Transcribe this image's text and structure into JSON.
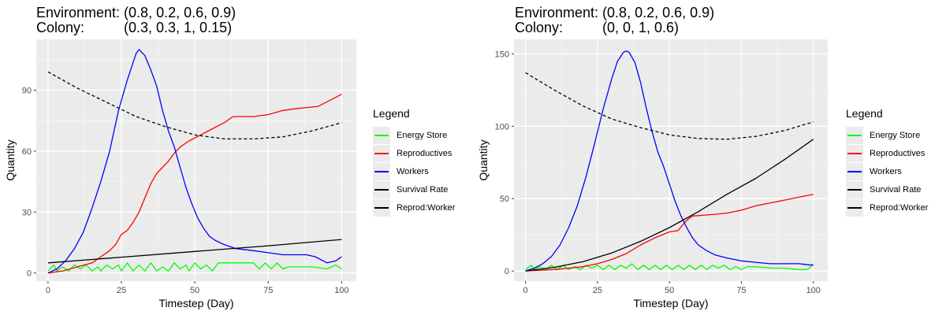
{
  "chart_data": [
    {
      "type": "line",
      "title_line1": "Environment: (0.8, 0.2, 0.6, 0.9)",
      "title_line2_label": "Colony:",
      "title_line2_value": "(0.3, 0.3, 1, 0.15)",
      "xlabel": "Timestep (Day)",
      "ylabel": "Quantity",
      "xlim": [
        -4,
        105
      ],
      "ylim": [
        -4,
        115
      ],
      "xticks": [
        0,
        25,
        50,
        75,
        100
      ],
      "yticks": [
        0,
        30,
        60,
        90
      ],
      "grid": true,
      "legend_position": "right",
      "legend_title": "Legend",
      "legend": [
        {
          "name": "Energy Store",
          "color": "#00ff00"
        },
        {
          "name": "Reproductives",
          "color": "#ff0000"
        },
        {
          "name": "Workers",
          "color": "#0000ff"
        },
        {
          "name": "Survival Rate",
          "color": "#000000"
        },
        {
          "name": "Reprod:Worker",
          "color": "#000000"
        }
      ],
      "series": [
        {
          "name": "Energy Store",
          "color": "#00ff00",
          "dashed": false,
          "points": [
            [
              0,
              1
            ],
            [
              2,
              4
            ],
            [
              3,
              1
            ],
            [
              5,
              3
            ],
            [
              7,
              1
            ],
            [
              9,
              4
            ],
            [
              11,
              2
            ],
            [
              13,
              4
            ],
            [
              15,
              1
            ],
            [
              17,
              3
            ],
            [
              18,
              1
            ],
            [
              20,
              4
            ],
            [
              22,
              2
            ],
            [
              24,
              4
            ],
            [
              25,
              1
            ],
            [
              27,
              5
            ],
            [
              29,
              1
            ],
            [
              31,
              4
            ],
            [
              33,
              1
            ],
            [
              35,
              5
            ],
            [
              37,
              1
            ],
            [
              39,
              3
            ],
            [
              41,
              1
            ],
            [
              43,
              5
            ],
            [
              45,
              2
            ],
            [
              47,
              4
            ],
            [
              48,
              1
            ],
            [
              50,
              5
            ],
            [
              52,
              2
            ],
            [
              54,
              4
            ],
            [
              56,
              1
            ],
            [
              58,
              5
            ],
            [
              60,
              5
            ],
            [
              65,
              5
            ],
            [
              70,
              5
            ],
            [
              72,
              2
            ],
            [
              74,
              5
            ],
            [
              76,
              2
            ],
            [
              78,
              5
            ],
            [
              80,
              2
            ],
            [
              82,
              3
            ],
            [
              90,
              3
            ],
            [
              95,
              2
            ],
            [
              98,
              4
            ],
            [
              100,
              2
            ]
          ]
        },
        {
          "name": "Reproductives",
          "color": "#ff0000",
          "dashed": false,
          "points": [
            [
              0,
              0
            ],
            [
              5,
              1
            ],
            [
              10,
              3
            ],
            [
              15,
              5
            ],
            [
              18,
              8
            ],
            [
              21,
              11
            ],
            [
              23,
              14
            ],
            [
              25,
              19
            ],
            [
              27,
              21
            ],
            [
              29,
              25
            ],
            [
              31,
              30
            ],
            [
              33,
              37
            ],
            [
              35,
              44
            ],
            [
              37,
              49
            ],
            [
              39,
              52
            ],
            [
              41,
              55
            ],
            [
              43,
              59
            ],
            [
              45,
              62
            ],
            [
              48,
              65
            ],
            [
              52,
              68
            ],
            [
              56,
              71
            ],
            [
              60,
              74
            ],
            [
              63,
              77
            ],
            [
              70,
              77
            ],
            [
              75,
              78
            ],
            [
              80,
              80
            ],
            [
              85,
              81
            ],
            [
              92,
              82
            ],
            [
              96,
              85
            ],
            [
              100,
              88
            ]
          ]
        },
        {
          "name": "Workers",
          "color": "#0000ff",
          "dashed": false,
          "points": [
            [
              0,
              0
            ],
            [
              3,
              2
            ],
            [
              6,
              6
            ],
            [
              9,
              12
            ],
            [
              12,
              20
            ],
            [
              15,
              32
            ],
            [
              18,
              45
            ],
            [
              21,
              60
            ],
            [
              24,
              80
            ],
            [
              27,
              95
            ],
            [
              30,
              108
            ],
            [
              31,
              110
            ],
            [
              33,
              107
            ],
            [
              35,
              100
            ],
            [
              37,
              92
            ],
            [
              39,
              80
            ],
            [
              41,
              70
            ],
            [
              43,
              62
            ],
            [
              45,
              52
            ],
            [
              47,
              42
            ],
            [
              49,
              34
            ],
            [
              51,
              27
            ],
            [
              53,
              22
            ],
            [
              55,
              18
            ],
            [
              57,
              16
            ],
            [
              60,
              14
            ],
            [
              64,
              12
            ],
            [
              70,
              11
            ],
            [
              75,
              10
            ],
            [
              80,
              9
            ],
            [
              85,
              9
            ],
            [
              88,
              9
            ],
            [
              91,
              8
            ],
            [
              95,
              5
            ],
            [
              98,
              6
            ],
            [
              100,
              8
            ]
          ]
        },
        {
          "name": "Survival Rate",
          "color": "#000000",
          "dashed": false,
          "points": [
            [
              0,
              5
            ],
            [
              25,
              7.8
            ],
            [
              50,
              10.6
            ],
            [
              75,
              13.4
            ],
            [
              100,
              16.5
            ]
          ]
        },
        {
          "name": "Reprod:Worker",
          "color": "#000000",
          "dashed": true,
          "points": [
            [
              0,
              99
            ],
            [
              10,
              91
            ],
            [
              20,
              84
            ],
            [
              30,
              77
            ],
            [
              40,
              72
            ],
            [
              50,
              68
            ],
            [
              60,
              66
            ],
            [
              70,
              66
            ],
            [
              80,
              67
            ],
            [
              90,
              70
            ],
            [
              100,
              74
            ]
          ]
        }
      ]
    },
    {
      "type": "line",
      "title_line1": "Environment: (0.8, 0.2, 0.6, 0.9)",
      "title_line2_label": "Colony:",
      "title_line2_value": "(0, 0, 1, 0.6)",
      "xlabel": "Timestep (Day)",
      "ylabel": "Quantity",
      "xlim": [
        -4,
        105
      ],
      "ylim": [
        -7,
        160
      ],
      "xticks": [
        0,
        25,
        50,
        75,
        100
      ],
      "yticks": [
        0,
        50,
        100,
        150
      ],
      "grid": true,
      "legend_position": "right",
      "legend_title": "Legend",
      "legend": [
        {
          "name": "Energy Store",
          "color": "#00ff00"
        },
        {
          "name": "Reproductives",
          "color": "#ff0000"
        },
        {
          "name": "Workers",
          "color": "#0000ff"
        },
        {
          "name": "Survival Rate",
          "color": "#000000"
        },
        {
          "name": "Reprod:Worker",
          "color": "#000000"
        }
      ],
      "series": [
        {
          "name": "Energy Store",
          "color": "#00ff00",
          "dashed": false,
          "points": [
            [
              0,
              1
            ],
            [
              2,
              4
            ],
            [
              3,
              1
            ],
            [
              5,
              3
            ],
            [
              7,
              1
            ],
            [
              9,
              4
            ],
            [
              11,
              1
            ],
            [
              13,
              4
            ],
            [
              15,
              1
            ],
            [
              17,
              3
            ],
            [
              19,
              1
            ],
            [
              21,
              4
            ],
            [
              23,
              2
            ],
            [
              25,
              4
            ],
            [
              27,
              1
            ],
            [
              29,
              4
            ],
            [
              31,
              1
            ],
            [
              33,
              4
            ],
            [
              35,
              2
            ],
            [
              37,
              5
            ],
            [
              39,
              1
            ],
            [
              41,
              4
            ],
            [
              43,
              1
            ],
            [
              45,
              4
            ],
            [
              47,
              1
            ],
            [
              49,
              4
            ],
            [
              51,
              1
            ],
            [
              53,
              4
            ],
            [
              55,
              1
            ],
            [
              57,
              4
            ],
            [
              59,
              1
            ],
            [
              61,
              4
            ],
            [
              63,
              1
            ],
            [
              65,
              4
            ],
            [
              67,
              2
            ],
            [
              69,
              4
            ],
            [
              71,
              1
            ],
            [
              73,
              3
            ],
            [
              75,
              1
            ],
            [
              77,
              3
            ],
            [
              80,
              3
            ],
            [
              85,
              2
            ],
            [
              90,
              2
            ],
            [
              95,
              1
            ],
            [
              98,
              1
            ],
            [
              100,
              5
            ]
          ]
        },
        {
          "name": "Reproductives",
          "color": "#ff0000",
          "dashed": false,
          "points": [
            [
              0,
              0
            ],
            [
              10,
              1
            ],
            [
              20,
              3
            ],
            [
              25,
              5
            ],
            [
              30,
              8
            ],
            [
              35,
              12
            ],
            [
              40,
              18
            ],
            [
              45,
              23
            ],
            [
              50,
              27
            ],
            [
              53,
              28
            ],
            [
              56,
              35
            ],
            [
              58,
              38
            ],
            [
              65,
              39
            ],
            [
              70,
              40
            ],
            [
              75,
              42
            ],
            [
              80,
              45
            ],
            [
              85,
              47
            ],
            [
              90,
              49
            ],
            [
              95,
              51
            ],
            [
              100,
              53
            ]
          ]
        },
        {
          "name": "Workers",
          "color": "#0000ff",
          "dashed": false,
          "points": [
            [
              0,
              0
            ],
            [
              3,
              2
            ],
            [
              6,
              5
            ],
            [
              9,
              10
            ],
            [
              12,
              18
            ],
            [
              15,
              30
            ],
            [
              18,
              45
            ],
            [
              21,
              65
            ],
            [
              24,
              88
            ],
            [
              27,
              112
            ],
            [
              30,
              133
            ],
            [
              32,
              145
            ],
            [
              34,
              151
            ],
            [
              35,
              152
            ],
            [
              36,
              151
            ],
            [
              38,
              144
            ],
            [
              40,
              130
            ],
            [
              42,
              112
            ],
            [
              44,
              96
            ],
            [
              46,
              82
            ],
            [
              48,
              72
            ],
            [
              50,
              60
            ],
            [
              52,
              48
            ],
            [
              54,
              38
            ],
            [
              56,
              30
            ],
            [
              58,
              23
            ],
            [
              60,
              18
            ],
            [
              63,
              14
            ],
            [
              66,
              11
            ],
            [
              70,
              9
            ],
            [
              75,
              7
            ],
            [
              80,
              6
            ],
            [
              85,
              5
            ],
            [
              90,
              5
            ],
            [
              95,
              5
            ],
            [
              100,
              4
            ]
          ]
        },
        {
          "name": "Survival Rate",
          "color": "#000000",
          "dashed": false,
          "points": [
            [
              0,
              0
            ],
            [
              10,
              2.5
            ],
            [
              20,
              6.5
            ],
            [
              30,
              12.5
            ],
            [
              40,
              20.5
            ],
            [
              50,
              30
            ],
            [
              60,
              41
            ],
            [
              70,
              53
            ],
            [
              80,
              64
            ],
            [
              90,
              77
            ],
            [
              100,
              91
            ]
          ]
        },
        {
          "name": "Reprod:Worker",
          "color": "#000000",
          "dashed": true,
          "points": [
            [
              0,
              137
            ],
            [
              10,
              125
            ],
            [
              20,
              114
            ],
            [
              30,
              105
            ],
            [
              40,
              99
            ],
            [
              50,
              94
            ],
            [
              60,
              91.5
            ],
            [
              70,
              91
            ],
            [
              80,
              93
            ],
            [
              90,
              97
            ],
            [
              100,
              103
            ]
          ]
        }
      ]
    }
  ]
}
